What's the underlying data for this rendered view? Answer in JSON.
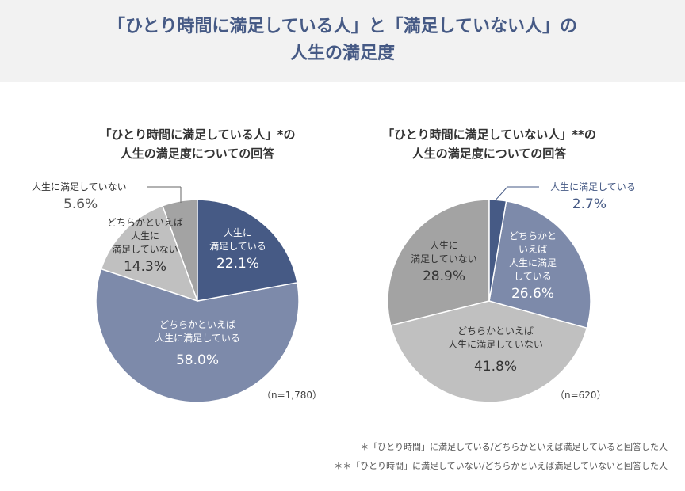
{
  "header": {
    "title_line1": "「ひとり時間に満足している人」と「満足していない人」の",
    "title_line2": "人生の満足度"
  },
  "colors": {
    "dark_blue": "#465a85",
    "mid_blue": "#7d8aaa",
    "light_gray": "#c0c0c0",
    "mid_gray": "#a3a3a3"
  },
  "chart_data": [
    {
      "type": "pie",
      "title": "「ひとり時間に満足している人」*の人生の満足度についての回答",
      "title_line1": "「ひとり時間に満足している人」*の",
      "title_line2": "人生の満足度についての回答",
      "n_label": "（n=1,780）",
      "slices": [
        {
          "label": "人生に満足している",
          "value": 22.1,
          "value_label": "22.1%",
          "color": "#465a85"
        },
        {
          "label": "どちらかといえば人生に満足している",
          "value": 58.0,
          "value_label": "58.0%",
          "color": "#7d8aaa"
        },
        {
          "label": "どちらかといえば人生に満足していない",
          "value": 14.3,
          "value_label": "14.3%",
          "color": "#c0c0c0"
        },
        {
          "label": "人生に満足していない",
          "value": 5.6,
          "value_label": "5.6%",
          "color": "#a3a3a3"
        }
      ]
    },
    {
      "type": "pie",
      "title": "「ひとり時間に満足していない人」**の人生の満足度についての回答",
      "title_line1": "「ひとり時間に満足していない人」**の",
      "title_line2": "人生の満足度についての回答",
      "n_label": "（n=620）",
      "slices": [
        {
          "label": "人生に満足している",
          "value": 2.7,
          "value_label": "2.7%",
          "color": "#465a85"
        },
        {
          "label": "どちらかといえば人生に満足している",
          "value": 26.6,
          "value_label": "26.6%",
          "color": "#7d8aaa"
        },
        {
          "label": "どちらかといえば人生に満足していない",
          "value": 41.8,
          "value_label": "41.8%",
          "color": "#c0c0c0"
        },
        {
          "label": "人生に満足していない",
          "value": 28.9,
          "value_label": "28.9%",
          "color": "#a3a3a3"
        }
      ]
    }
  ],
  "labels": {
    "l0a": "人生に",
    "l0b": "満足している",
    "l1a": "どちらかといえば",
    "l1b": "人生に満足している",
    "l2a": "どちらかといえば",
    "l2b": "人生に",
    "l2c": "満足していない",
    "l3": "人生に満足していない",
    "r0": "人生に満足している",
    "r1a": "どちらかと",
    "r1b": "いえば",
    "r1c": "人生に満足",
    "r1d": "している",
    "r2a": "どちらかといえば",
    "r2b": "人生に満足していない",
    "r3a": "人生に",
    "r3b": "満足していない"
  },
  "footnotes": [
    "＊「ひとり時間」に満足している/どちらかといえば満足していると回答した人",
    "＊＊「ひとり時間」に満足していない/どちらかといえば満足していないと回答した人"
  ]
}
